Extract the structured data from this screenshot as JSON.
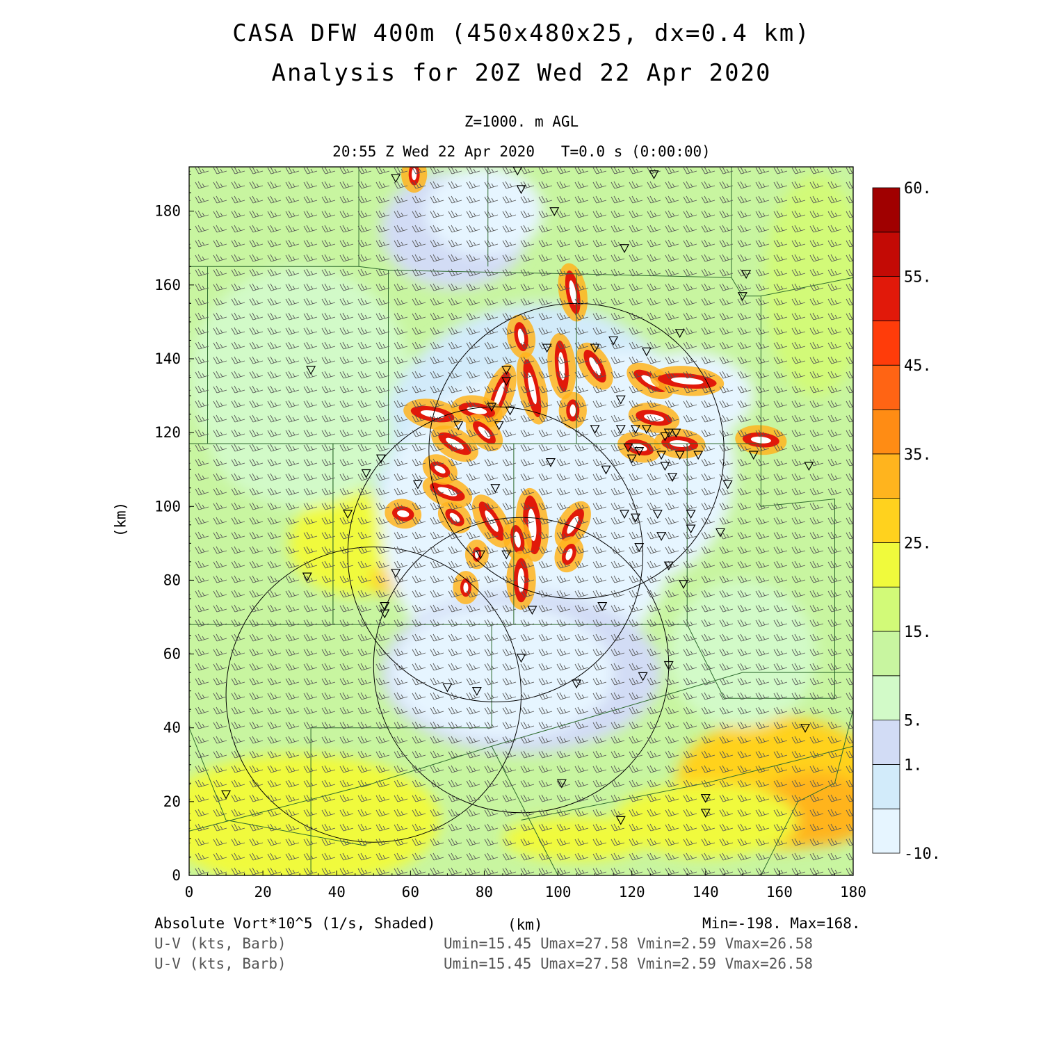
{
  "header": {
    "title_line1": "CASA DFW 400m (450x480x25, dx=0.4 km)",
    "title_line2": "Analysis for 20Z Wed 22 Apr 2020",
    "level": "Z=1000. m AGL",
    "time": "20:55 Z Wed 22 Apr 2020   T=0.0 s (0:00:00)"
  },
  "chart_data": {
    "type": "heatmap",
    "xlabel": "(km)",
    "ylabel": "(km)",
    "xlim": [
      0,
      180
    ],
    "ylim": [
      0,
      192
    ],
    "x_ticks": [
      0,
      20,
      40,
      60,
      80,
      100,
      120,
      140,
      160,
      180
    ],
    "y_ticks": [
      0,
      20,
      40,
      60,
      80,
      100,
      120,
      140,
      160,
      180
    ],
    "field": "Absolute Vort*10^5 (1/s, Shaded)",
    "colorbar": {
      "levels": [
        -10,
        -5,
        1,
        5,
        10,
        15,
        20,
        25,
        30,
        35,
        40,
        45,
        50,
        55,
        60
      ],
      "labels": [
        "60.",
        "55.",
        "45.",
        "35.",
        "25.",
        "15.",
        "5.",
        "1.",
        "-10."
      ],
      "label_values": [
        60,
        55,
        45,
        35,
        25,
        15,
        5,
        1,
        -10
      ],
      "colors": [
        "#e6f5ff",
        "#d2ebfa",
        "#d2dcf5",
        "#d2fac8",
        "#c8f5a0",
        "#d2fa78",
        "#f0fa3c",
        "#ffd21e",
        "#ffb41e",
        "#ff8c14",
        "#ff6414",
        "#ff3c0a",
        "#e1190a",
        "#c30a05",
        "#a00000"
      ]
    },
    "radar_circles_km": [
      {
        "cx": 105,
        "cy": 115,
        "r": 40
      },
      {
        "cx": 83,
        "cy": 87,
        "r": 40
      },
      {
        "cx": 50,
        "cy": 49,
        "r": 40
      },
      {
        "cx": 90,
        "cy": 57,
        "r": 40
      }
    ],
    "stats": {
      "min": "Min=-198.",
      "max": "Max=168.",
      "wind": "Umin=15.45 Umax=27.58 Vmin=2.59 Vmax=26.58"
    },
    "footer_left": [
      "Absolute Vort*10^5 (1/s, Shaded)",
      "U-V (kts, Barb)",
      "U-V (kts, Barb)"
    ],
    "footer_xlabel": "(km)",
    "stat_line1": "Min=-198. Max=168.",
    "stat_line2": "Umin=15.45 Umax=27.58 Vmin=2.59 Vmax=26.58",
    "stat_line3": "Umin=15.45 Umax=27.58 Vmin=2.59 Vmax=26.58"
  }
}
